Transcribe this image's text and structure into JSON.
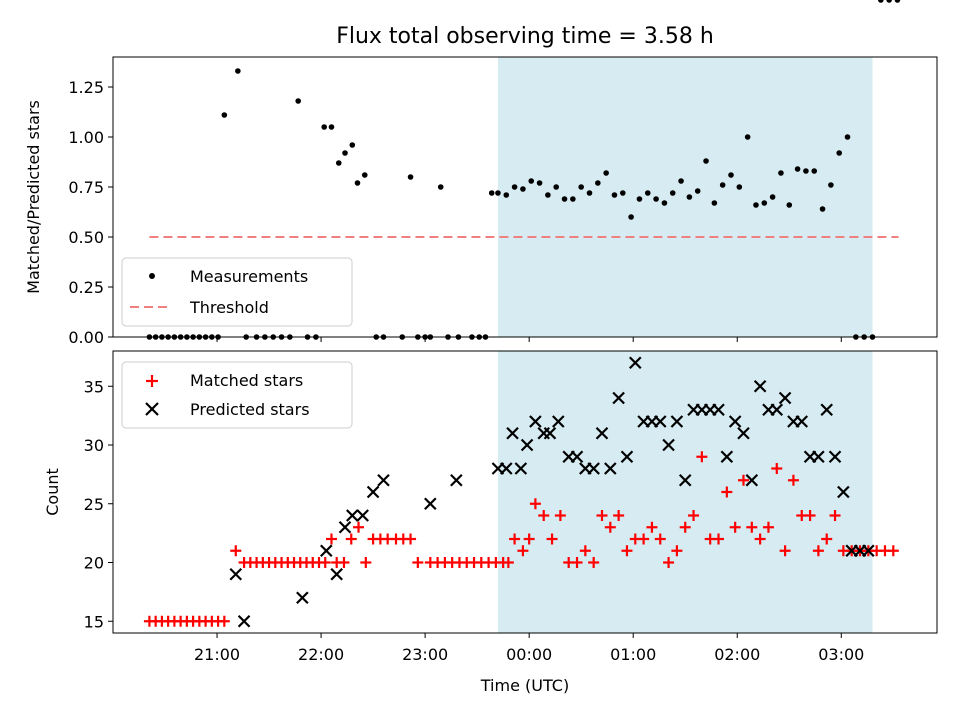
{
  "chart_data": {
    "type": "scatter",
    "title": "Flux total observing time = 3.58 h",
    "xlabel": "Time (UTC)",
    "x_tick_labels": [
      "21:00",
      "22:00",
      "23:00",
      "00:00",
      "01:00",
      "02:00",
      "03:00"
    ],
    "x_tick_values_hours": [
      21,
      22,
      23,
      24,
      25,
      26,
      27
    ],
    "xlim_hours": [
      20.0,
      27.92
    ],
    "shaded_span_hours": [
      23.7,
      27.3
    ],
    "colors": {
      "measurements": "#000000",
      "threshold": "#f08080",
      "matched": "#ff0000",
      "predicted": "#000000",
      "shade": "#add8e6"
    },
    "top": {
      "ylabel": "Matched/Predicted stars",
      "ylim": [
        0,
        1.4
      ],
      "y_ticks": [
        0.0,
        0.25,
        0.5,
        0.75,
        1.0,
        1.25
      ],
      "y_tick_labels": [
        "0.00",
        "0.25",
        "0.50",
        "0.75",
        "1.00",
        "1.25"
      ],
      "legend": [
        "Measurements",
        "Threshold"
      ],
      "threshold": {
        "value": 0.5,
        "x_range_hours": [
          20.35,
          27.55
        ]
      },
      "measurements_hours": [
        20.35,
        20.41,
        20.47,
        20.53,
        20.59,
        20.65,
        20.71,
        20.77,
        20.83,
        20.89,
        20.95,
        21.01,
        21.07,
        21.2,
        21.28,
        21.38,
        21.46,
        21.54,
        21.62,
        21.7,
        21.78,
        21.87,
        21.95,
        22.03,
        22.1,
        22.17,
        22.23,
        22.3,
        22.35,
        22.42,
        22.53,
        22.6,
        22.78,
        22.86,
        22.93,
        23.0,
        23.05,
        23.15,
        23.22,
        23.32,
        23.45,
        23.52,
        23.58,
        23.64,
        23.7,
        23.78,
        23.86,
        23.94,
        24.02,
        24.1,
        24.18,
        24.26,
        24.34,
        24.42,
        24.5,
        24.58,
        24.66,
        24.74,
        24.82,
        24.9,
        24.98,
        25.06,
        25.14,
        25.22,
        25.3,
        25.38,
        25.46,
        25.54,
        25.62,
        25.7,
        25.78,
        25.86,
        25.94,
        26.02,
        26.1,
        26.18,
        26.26,
        26.34,
        26.42,
        26.5,
        26.58,
        26.66,
        26.74,
        26.82,
        26.9,
        26.98,
        27.06,
        27.14,
        27.22,
        27.3,
        27.38,
        27.46,
        27.54
      ],
      "measurements_values": [
        0,
        0,
        0,
        0,
        0,
        0,
        0,
        0,
        0,
        0,
        0,
        0,
        1.11,
        1.33,
        0,
        0,
        0,
        0,
        0,
        0,
        1.18,
        0,
        0,
        1.05,
        1.05,
        0.87,
        0.92,
        0.96,
        0.77,
        0.81,
        0,
        0,
        0,
        0.8,
        0,
        0,
        0,
        0.75,
        0,
        0,
        0,
        0,
        0,
        0.72,
        0.72,
        0.71,
        0.75,
        0.74,
        0.78,
        0.77,
        0.71,
        0.75,
        0.69,
        0.69,
        0.75,
        0.72,
        0.77,
        0.82,
        0.71,
        0.72,
        0.6,
        0.69,
        0.72,
        0.69,
        0.67,
        0.72,
        0.78,
        0.7,
        0.73,
        0.88,
        0.67,
        0.76,
        0.81,
        0.75,
        1.0,
        0.66,
        0.67,
        0.7,
        0.82,
        0.66,
        0.84,
        0.83,
        0.83,
        0.64,
        0.76,
        0.92,
        1.0,
        0,
        0,
        0
      ]
    },
    "bottom": {
      "ylabel": "Count",
      "ylim": [
        14,
        38
      ],
      "y_ticks": [
        15,
        20,
        25,
        30,
        35
      ],
      "y_tick_labels": [
        "15",
        "20",
        "25",
        "30",
        "35"
      ],
      "legend": [
        "Matched stars",
        "Predicted stars"
      ],
      "matched_hours": [
        20.35,
        20.41,
        20.47,
        20.53,
        20.59,
        20.65,
        20.71,
        20.77,
        20.83,
        20.89,
        20.95,
        21.01,
        21.07,
        21.18,
        21.26,
        21.32,
        21.38,
        21.44,
        21.5,
        21.56,
        21.62,
        21.68,
        21.74,
        21.8,
        21.86,
        21.92,
        21.98,
        22.04,
        22.1,
        22.15,
        22.22,
        22.29,
        22.36,
        22.43,
        22.5,
        22.57,
        22.64,
        22.72,
        22.79,
        22.86,
        22.93,
        23.05,
        23.12,
        23.19,
        23.26,
        23.33,
        23.4,
        23.47,
        23.54,
        23.61,
        23.68,
        23.75,
        23.8,
        23.86,
        23.94,
        24.0,
        24.06,
        24.14,
        24.22,
        24.3,
        24.38,
        24.46,
        24.54,
        24.62,
        24.7,
        24.78,
        24.86,
        24.94,
        25.02,
        25.1,
        25.18,
        25.26,
        25.34,
        25.42,
        25.5,
        25.58,
        25.66,
        25.74,
        25.82,
        25.9,
        25.98,
        26.06,
        26.14,
        26.22,
        26.3,
        26.38,
        26.46,
        26.54,
        26.62,
        26.7,
        26.78,
        26.86,
        26.94,
        27.02,
        27.1,
        27.18,
        27.26,
        27.34,
        27.42,
        27.5
      ],
      "matched_values": [
        15,
        15,
        15,
        15,
        15,
        15,
        15,
        15,
        15,
        15,
        15,
        15,
        15,
        21,
        20,
        20,
        20,
        20,
        20,
        20,
        20,
        20,
        20,
        20,
        20,
        20,
        20,
        20,
        22,
        20,
        20,
        22,
        23,
        20,
        22,
        22,
        22,
        22,
        22,
        22,
        20,
        20,
        20,
        20,
        20,
        20,
        20,
        20,
        20,
        20,
        20,
        20,
        20,
        22,
        21,
        22,
        25,
        24,
        22,
        24,
        20,
        20,
        21,
        20,
        24,
        23,
        24,
        21,
        22,
        22,
        23,
        22,
        20,
        21,
        23,
        24,
        29,
        22,
        22,
        26,
        23,
        27,
        23,
        22,
        23,
        28,
        21,
        27,
        24,
        24,
        21,
        22,
        24,
        21,
        21,
        21,
        21,
        21,
        21,
        21
      ],
      "predicted_hours": [
        21.18,
        21.26,
        21.82,
        22.05,
        22.15,
        22.23,
        22.3,
        22.4,
        22.5,
        22.6,
        23.05,
        23.3,
        23.7,
        23.78,
        23.84,
        23.92,
        23.98,
        24.06,
        24.14,
        24.2,
        24.28,
        24.38,
        24.46,
        24.54,
        24.62,
        24.7,
        24.78,
        24.86,
        24.94,
        25.02,
        25.1,
        25.18,
        25.26,
        25.34,
        25.42,
        25.5,
        25.58,
        25.66,
        25.74,
        25.82,
        25.9,
        25.98,
        26.06,
        26.14,
        26.22,
        26.3,
        26.38,
        26.46,
        26.54,
        26.62,
        26.7,
        26.78,
        26.86,
        26.94,
        27.02,
        27.1,
        27.18,
        27.26
      ],
      "predicted_values": [
        19,
        15,
        17,
        21,
        19,
        23,
        24,
        24,
        26,
        27,
        25,
        27,
        28,
        28,
        31,
        28,
        30,
        32,
        31,
        31,
        32,
        29,
        29,
        28,
        28,
        31,
        28,
        34,
        29,
        37,
        32,
        32,
        32,
        30,
        32,
        27,
        33,
        33,
        33,
        33,
        29,
        32,
        31,
        27,
        35,
        33,
        33,
        34,
        32,
        32,
        29,
        29,
        33,
        29,
        26,
        21,
        21,
        21
      ]
    }
  }
}
